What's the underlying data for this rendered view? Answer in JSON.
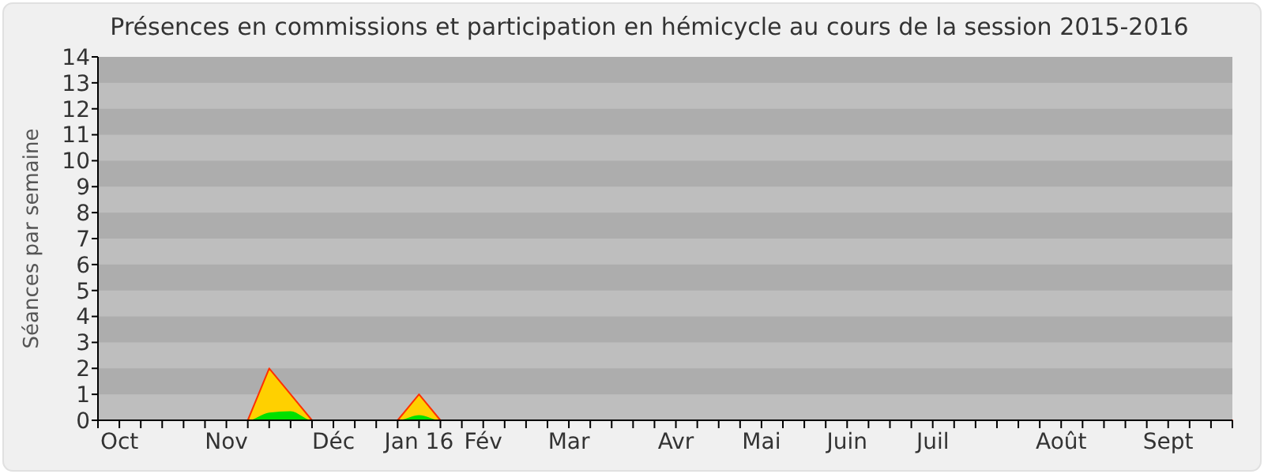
{
  "chart_data": {
    "type": "area",
    "title": "Présences en commissions et participation en hémicycle au cours de la session 2015-2016",
    "ylabel": "Séances par semaine",
    "categories": [
      null,
      "Oct",
      null,
      null,
      null,
      null,
      "Nov",
      null,
      null,
      null,
      null,
      "Déc",
      null,
      null,
      null,
      "Jan 16",
      null,
      null,
      "Fév",
      null,
      null,
      null,
      "Mar",
      null,
      null,
      null,
      null,
      "Avr",
      null,
      null,
      null,
      "Mai",
      null,
      null,
      null,
      "Juin",
      null,
      null,
      null,
      "Juil",
      null,
      null,
      null,
      null,
      null,
      "Août",
      null,
      null,
      null,
      null,
      "Sept",
      null,
      null,
      null
    ],
    "series": [
      {
        "color": "#ffd000",
        "values": [
          0,
          0,
          0,
          0,
          0,
          0,
          0,
          0,
          2,
          1,
          0,
          0,
          0,
          0,
          0,
          1,
          0,
          0,
          0,
          0,
          0,
          0,
          0,
          0,
          0,
          0,
          0,
          0,
          0,
          0,
          0,
          0,
          0,
          0,
          0,
          0,
          0,
          0,
          0,
          0,
          0,
          0,
          0,
          0,
          0,
          0,
          0,
          0,
          0,
          0,
          0,
          0,
          0,
          0
        ]
      },
      {
        "color": "#00e000",
        "values": [
          0,
          0,
          0,
          0,
          0,
          0,
          0,
          0,
          0.3,
          0.35,
          0,
          0,
          0,
          0,
          0,
          0.2,
          0,
          0,
          0,
          0,
          0,
          0,
          0,
          0,
          0,
          0,
          0,
          0,
          0,
          0,
          0,
          0,
          0,
          0,
          0,
          0,
          0,
          0,
          0,
          0,
          0,
          0,
          0,
          0,
          0,
          0,
          0,
          0,
          0,
          0,
          0,
          0,
          0,
          0
        ]
      }
    ],
    "bands": [
      {
        "axis": "y",
        "from": 1,
        "to": 2,
        "color": "#adadad"
      },
      {
        "axis": "y",
        "from": 3,
        "to": 4,
        "color": "#adadad"
      },
      {
        "axis": "y",
        "from": 5,
        "to": 6,
        "color": "#adadad"
      },
      {
        "axis": "y",
        "from": 7,
        "to": 8,
        "color": "#adadad"
      },
      {
        "axis": "y",
        "from": 9,
        "to": 10,
        "color": "#adadad"
      },
      {
        "axis": "y",
        "from": 11,
        "to": 12,
        "color": "#adadad"
      },
      {
        "axis": "y",
        "from": 13,
        "to": 14,
        "color": "#adadad"
      }
    ],
    "ylim": [
      0,
      14
    ],
    "yticks": [
      0,
      1,
      2,
      3,
      4,
      5,
      6,
      7,
      8,
      9,
      10,
      11,
      12,
      13,
      14
    ]
  }
}
